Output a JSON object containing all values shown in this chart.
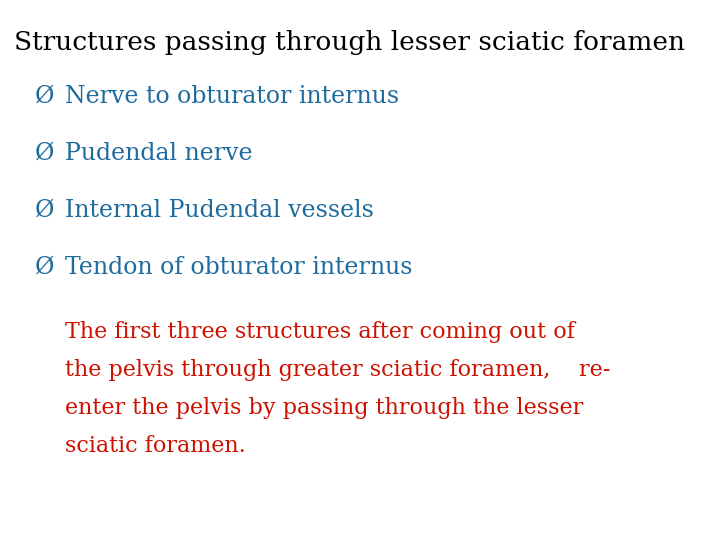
{
  "title": "Structures passing through lesser sciatic foramen",
  "title_color": "#000000",
  "title_fontsize": 19,
  "bullet_color": "#1e6b9e",
  "bullet_symbol": "Ø",
  "bullets": [
    "Nerve to obturator internus",
    "Pudendal nerve",
    "Internal Pudendal vessels",
    "Tendon of obturator internus"
  ],
  "bullet_fontsize": 17,
  "note_color": "#cc1100",
  "note_lines": [
    "The first three structures after coming out of",
    "the pelvis through greater sciatic foramen,    re-",
    "enter the pelvis by passing through the lesser",
    "sciatic foramen."
  ],
  "note_fontsize": 16,
  "background_color": "#ffffff"
}
